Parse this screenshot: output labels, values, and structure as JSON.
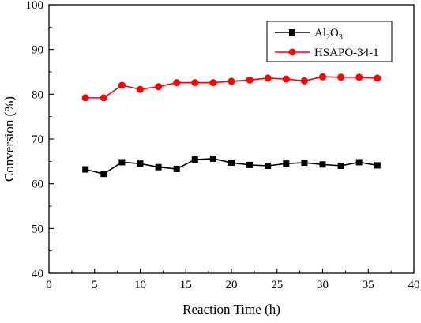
{
  "chart_data": {
    "type": "line",
    "title": "",
    "xlabel": "Reaction Time (h)",
    "ylabel": "Conversion (%)",
    "xlim": [
      0,
      40
    ],
    "ylim": [
      40,
      100
    ],
    "x_ticks": [
      "0",
      "5",
      "10",
      "15",
      "20",
      "25",
      "30",
      "35",
      "40"
    ],
    "y_ticks": [
      "40",
      "50",
      "60",
      "70",
      "80",
      "90",
      "100"
    ],
    "grid": false,
    "legend_position": "top-right",
    "x": [
      4,
      6,
      8,
      10,
      12,
      14,
      16,
      18,
      20,
      22,
      24,
      26,
      28,
      30,
      32,
      34,
      36
    ],
    "series": [
      {
        "legend": {
          "base": "Al",
          "sub1": "2",
          "mid": "O",
          "sub2": "3"
        },
        "marker": "square",
        "color": "#000000",
        "values": [
          63.2,
          62.2,
          64.8,
          64.5,
          63.7,
          63.3,
          65.4,
          65.6,
          64.7,
          64.2,
          64.0,
          64.5,
          64.7,
          64.3,
          64.0,
          64.8,
          64.1
        ]
      },
      {
        "name": "HSAPO-34-1",
        "marker": "circle",
        "color": "#ff0000",
        "values": [
          79.2,
          79.2,
          82.0,
          81.1,
          81.7,
          82.6,
          82.6,
          82.6,
          82.9,
          83.2,
          83.6,
          83.4,
          83.0,
          83.9,
          83.8,
          83.8,
          83.6
        ]
      }
    ]
  }
}
